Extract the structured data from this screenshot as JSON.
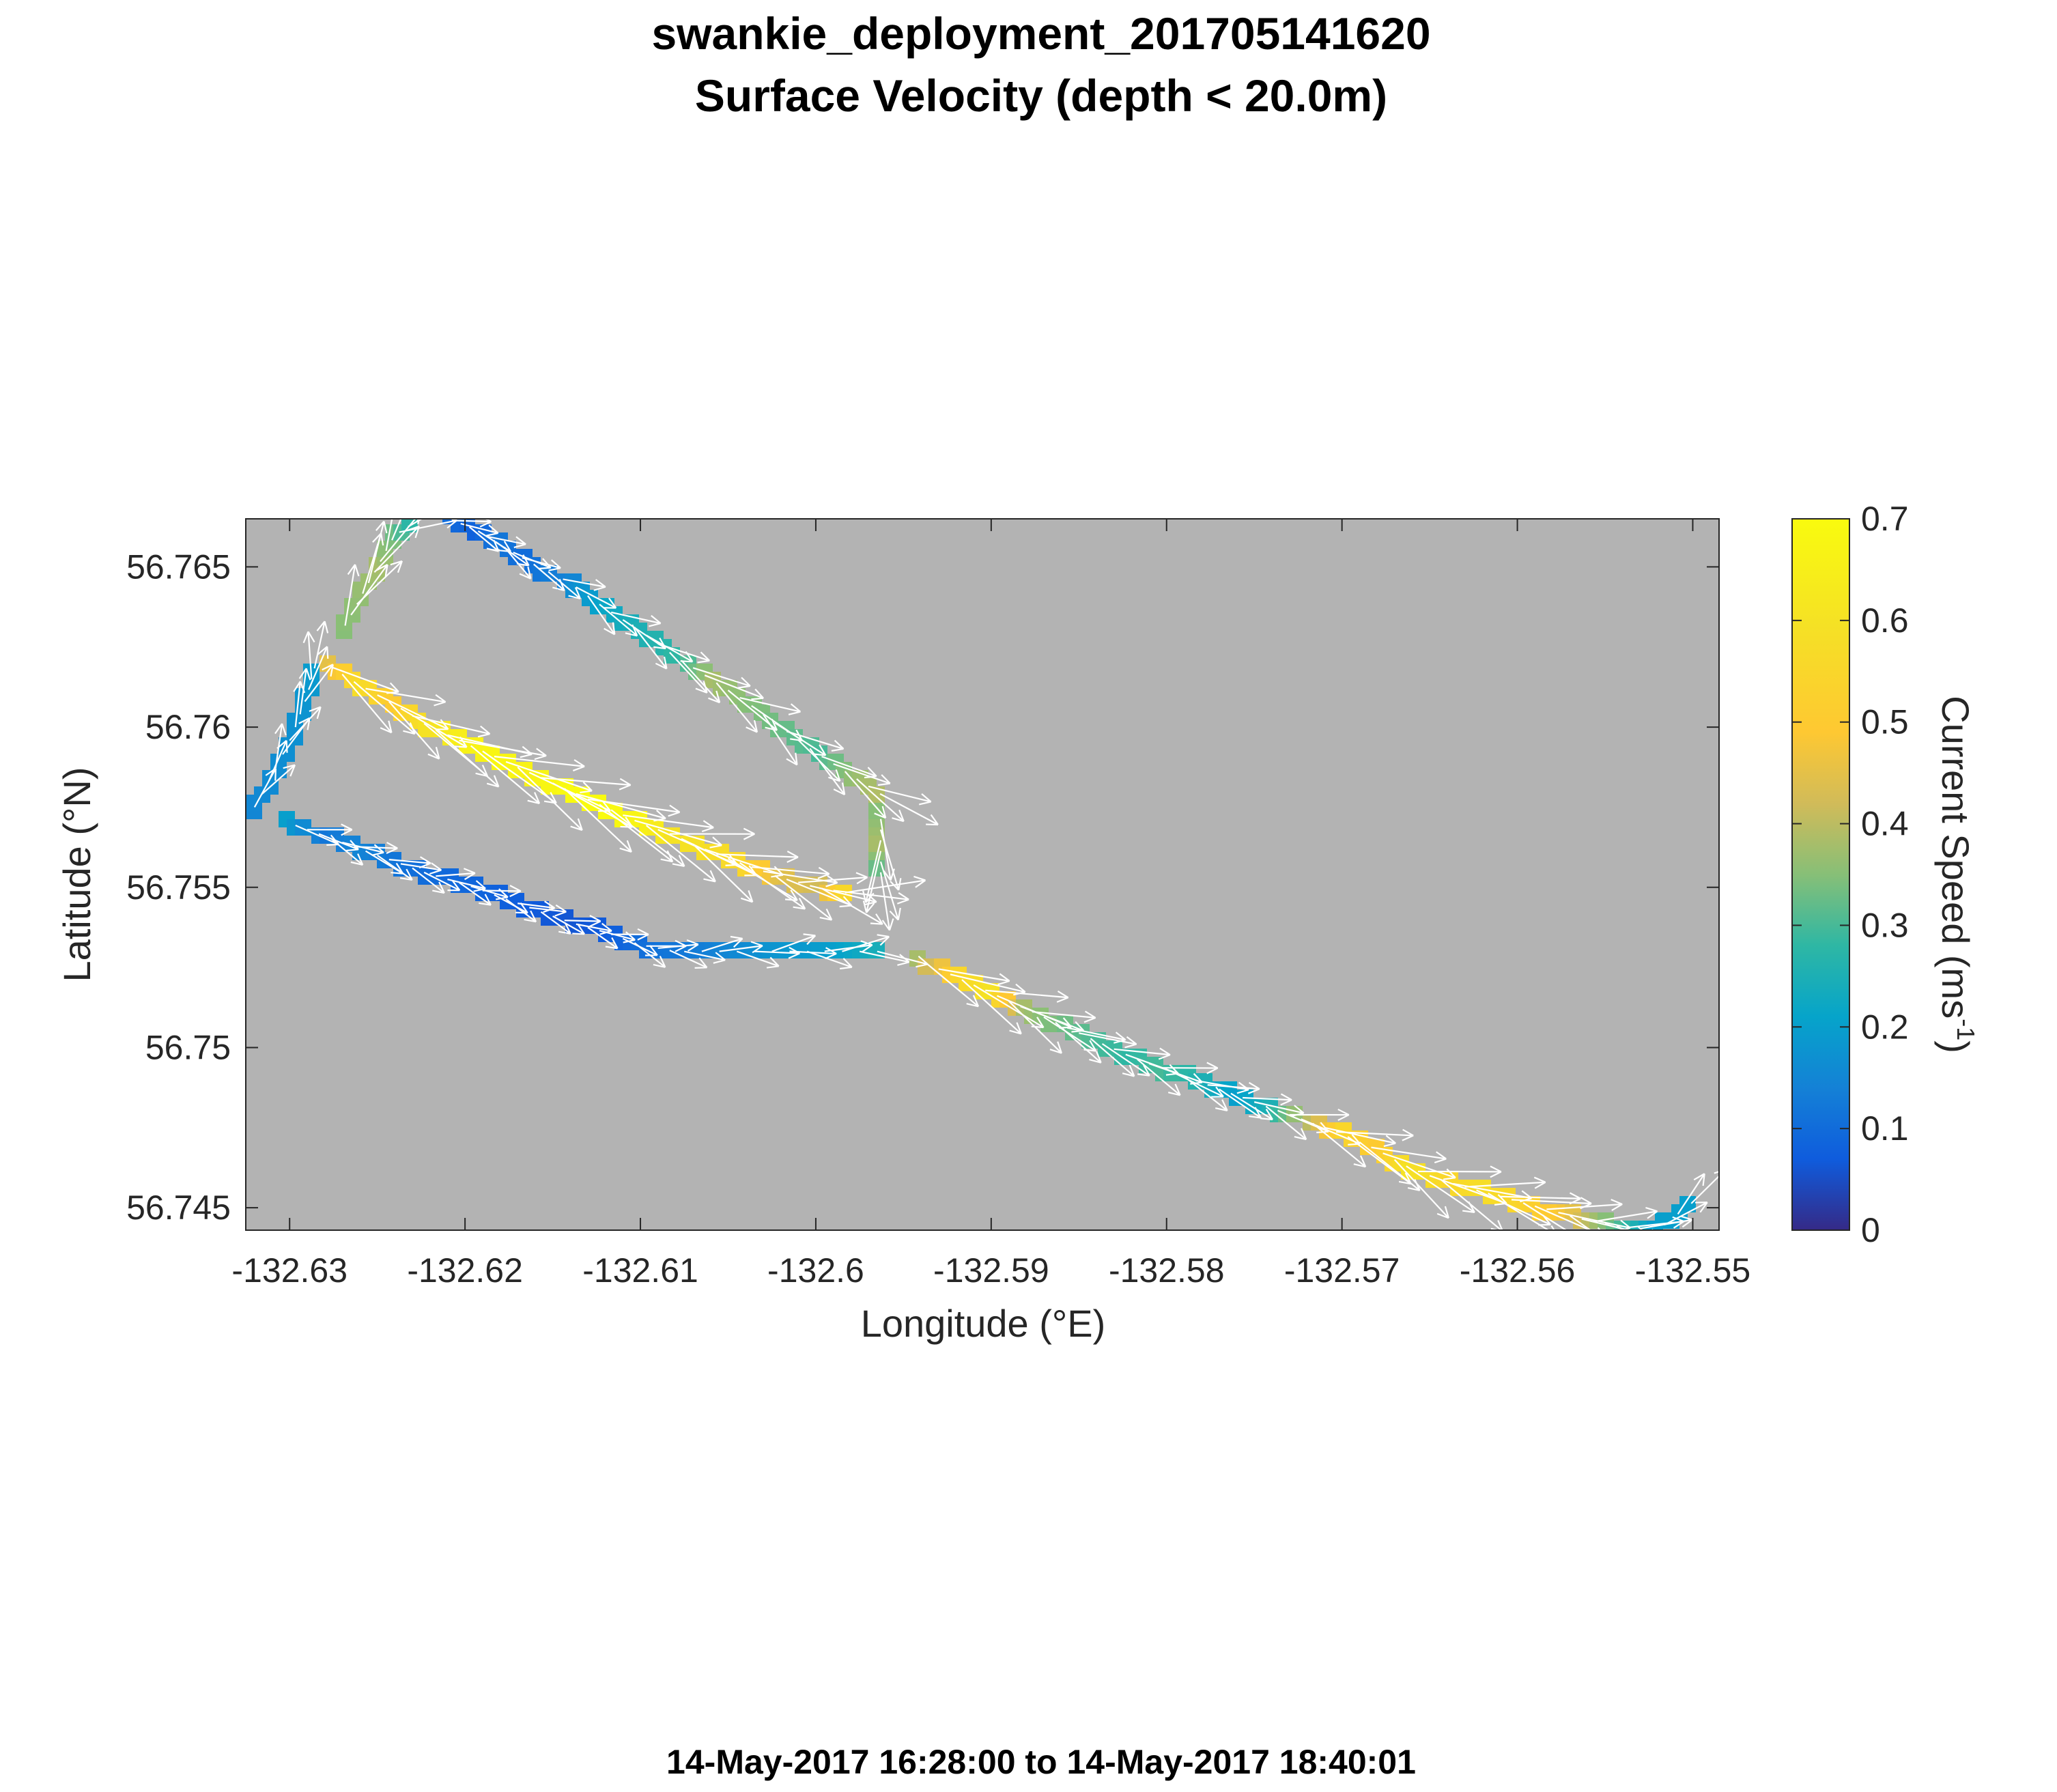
{
  "title": "swankie_deployment_201705141620",
  "subtitle": "Surface Velocity (depth < 20.0m)",
  "footer": "14-May-2017 16:28:00 to 14-May-2017 18:40:01",
  "chart_data": {
    "type": "heatmap",
    "description_type": "gridded current speed track with velocity vectors (quiver)",
    "xlabel": "Longitude (°E)",
    "ylabel": "Latitude (°N)",
    "xlim": [
      -132.6325,
      -132.5485
    ],
    "ylim": [
      56.7443,
      56.7665
    ],
    "xticks": [
      -132.63,
      -132.62,
      -132.61,
      -132.6,
      -132.59,
      -132.58,
      -132.57,
      -132.56,
      -132.55
    ],
    "xtick_labels": [
      "-132.63",
      "-132.62",
      "-132.61",
      "-132.6",
      "-132.59",
      "-132.58",
      "-132.57",
      "-132.56",
      "-132.55"
    ],
    "yticks": [
      56.745,
      56.75,
      56.755,
      56.76,
      56.765
    ],
    "ytick_labels": [
      "56.745",
      "56.75",
      "56.755",
      "56.76",
      "56.765"
    ],
    "background_color": "#b3b3b3",
    "colorbar": {
      "label": "Current Speed (ms",
      "label_superscript": "-1",
      "label_suffix": ")",
      "range": [
        0,
        0.7
      ],
      "ticks": [
        0,
        0.1,
        0.2,
        0.3,
        0.4,
        0.5,
        0.6,
        0.7
      ],
      "tick_labels": [
        "0",
        "0.1",
        "0.2",
        "0.3",
        "0.4",
        "0.5",
        "0.6",
        "0.7"
      ],
      "colormap": "parula"
    },
    "tracks": [
      {
        "segment": "west-leg",
        "points": [
          [
            -132.6322,
            56.7573,
            0.15
          ],
          [
            -132.631,
            56.7585,
            0.16
          ],
          [
            -132.6298,
            56.7598,
            0.17
          ],
          [
            -132.629,
            56.761,
            0.18
          ],
          [
            -132.6285,
            56.762,
            0.2
          ]
        ]
      },
      {
        "segment": "north-jet",
        "points": [
          [
            -132.628,
            56.762,
            0.45
          ],
          [
            -132.626,
            56.7613,
            0.58
          ],
          [
            -132.624,
            56.7607,
            0.5
          ],
          [
            -132.622,
            56.76,
            0.6
          ],
          [
            -132.62,
            56.7595,
            0.66
          ],
          [
            -132.618,
            56.759,
            0.68
          ],
          [
            -132.616,
            56.7585,
            0.66
          ],
          [
            -132.614,
            56.758,
            0.7
          ],
          [
            -132.612,
            56.7575,
            0.7
          ],
          [
            -132.61,
            56.757,
            0.67
          ],
          [
            -132.608,
            56.7566,
            0.6
          ],
          [
            -132.606,
            56.7561,
            0.58
          ],
          [
            -132.604,
            56.7557,
            0.55
          ],
          [
            -132.602,
            56.7553,
            0.45
          ],
          [
            -132.6,
            56.755,
            0.42
          ],
          [
            -132.598,
            56.7548,
            0.6
          ]
        ]
      },
      {
        "segment": "north-loop-up",
        "points": [
          [
            -132.627,
            56.763,
            0.35
          ],
          [
            -132.626,
            56.764,
            0.36
          ],
          [
            -132.625,
            56.765,
            0.38
          ],
          [
            -132.624,
            56.766,
            0.33
          ],
          [
            -132.6225,
            56.7665,
            0.25
          ]
        ]
      },
      {
        "segment": "north-loop-top",
        "points": [
          [
            -132.621,
            56.7665,
            0.1
          ],
          [
            -132.6195,
            56.7662,
            0.08
          ],
          [
            -132.618,
            56.7657,
            0.12
          ],
          [
            -132.6165,
            56.7652,
            0.1
          ],
          [
            -132.614,
            56.7645,
            0.15
          ],
          [
            -132.612,
            56.7637,
            0.22
          ],
          [
            -132.61,
            56.763,
            0.25
          ],
          [
            -132.608,
            56.7622,
            0.28
          ],
          [
            -132.606,
            56.7615,
            0.38
          ],
          [
            -132.604,
            56.7608,
            0.35
          ],
          [
            -132.602,
            56.76,
            0.33
          ],
          [
            -132.6,
            56.7592,
            0.3
          ],
          [
            -132.598,
            56.7585,
            0.36
          ],
          [
            -132.596,
            56.7578,
            0.4
          ]
        ]
      },
      {
        "segment": "north-loop-down",
        "points": [
          [
            -132.5963,
            56.7573,
            0.35
          ],
          [
            -132.5963,
            56.7563,
            0.38
          ],
          [
            -132.5963,
            56.7553,
            0.3
          ]
        ]
      },
      {
        "segment": "south-leg",
        "points": [
          [
            -132.63,
            56.757,
            0.2
          ],
          [
            -132.628,
            56.7566,
            0.12
          ],
          [
            -132.626,
            56.7562,
            0.15
          ],
          [
            -132.624,
            56.7558,
            0.12
          ],
          [
            -132.622,
            56.7554,
            0.1
          ],
          [
            -132.62,
            56.7551,
            0.09
          ],
          [
            -132.618,
            56.7547,
            0.08
          ],
          [
            -132.616,
            56.7543,
            0.07
          ],
          [
            -132.614,
            56.7539,
            0.06
          ],
          [
            -132.612,
            56.7536,
            0.07
          ],
          [
            -132.61,
            56.7532,
            0.1
          ],
          [
            -132.608,
            56.753,
            0.12
          ],
          [
            -132.605,
            56.753,
            0.15
          ],
          [
            -132.602,
            56.753,
            0.18
          ],
          [
            -132.599,
            56.753,
            0.2
          ],
          [
            -132.596,
            56.753,
            0.25
          ]
        ]
      },
      {
        "segment": "southeast-leg",
        "points": [
          [
            -132.594,
            56.7527,
            0.38
          ],
          [
            -132.592,
            56.7522,
            0.55
          ],
          [
            -132.59,
            56.7517,
            0.6
          ],
          [
            -132.588,
            56.7512,
            0.38
          ],
          [
            -132.586,
            56.7507,
            0.33
          ],
          [
            -132.584,
            56.7502,
            0.3
          ],
          [
            -132.582,
            56.7497,
            0.28
          ],
          [
            -132.58,
            56.7493,
            0.3
          ],
          [
            -132.578,
            56.7489,
            0.25
          ],
          [
            -132.576,
            56.7485,
            0.2
          ],
          [
            -132.574,
            56.7481,
            0.25
          ],
          [
            -132.572,
            56.7477,
            0.4
          ],
          [
            -132.57,
            56.7473,
            0.55
          ],
          [
            -132.568,
            56.7468,
            0.5
          ],
          [
            -132.566,
            56.7462,
            0.6
          ],
          [
            -132.564,
            56.7458,
            0.55
          ],
          [
            -132.562,
            56.7455,
            0.58
          ],
          [
            -132.56,
            56.7452,
            0.55
          ],
          [
            -132.558,
            56.7449,
            0.5
          ],
          [
            -132.556,
            56.7446,
            0.4
          ],
          [
            -132.554,
            56.7444,
            0.3
          ],
          [
            -132.552,
            56.7443,
            0.2
          ],
          [
            -132.5497,
            56.7453,
            0.2
          ]
        ]
      }
    ]
  }
}
